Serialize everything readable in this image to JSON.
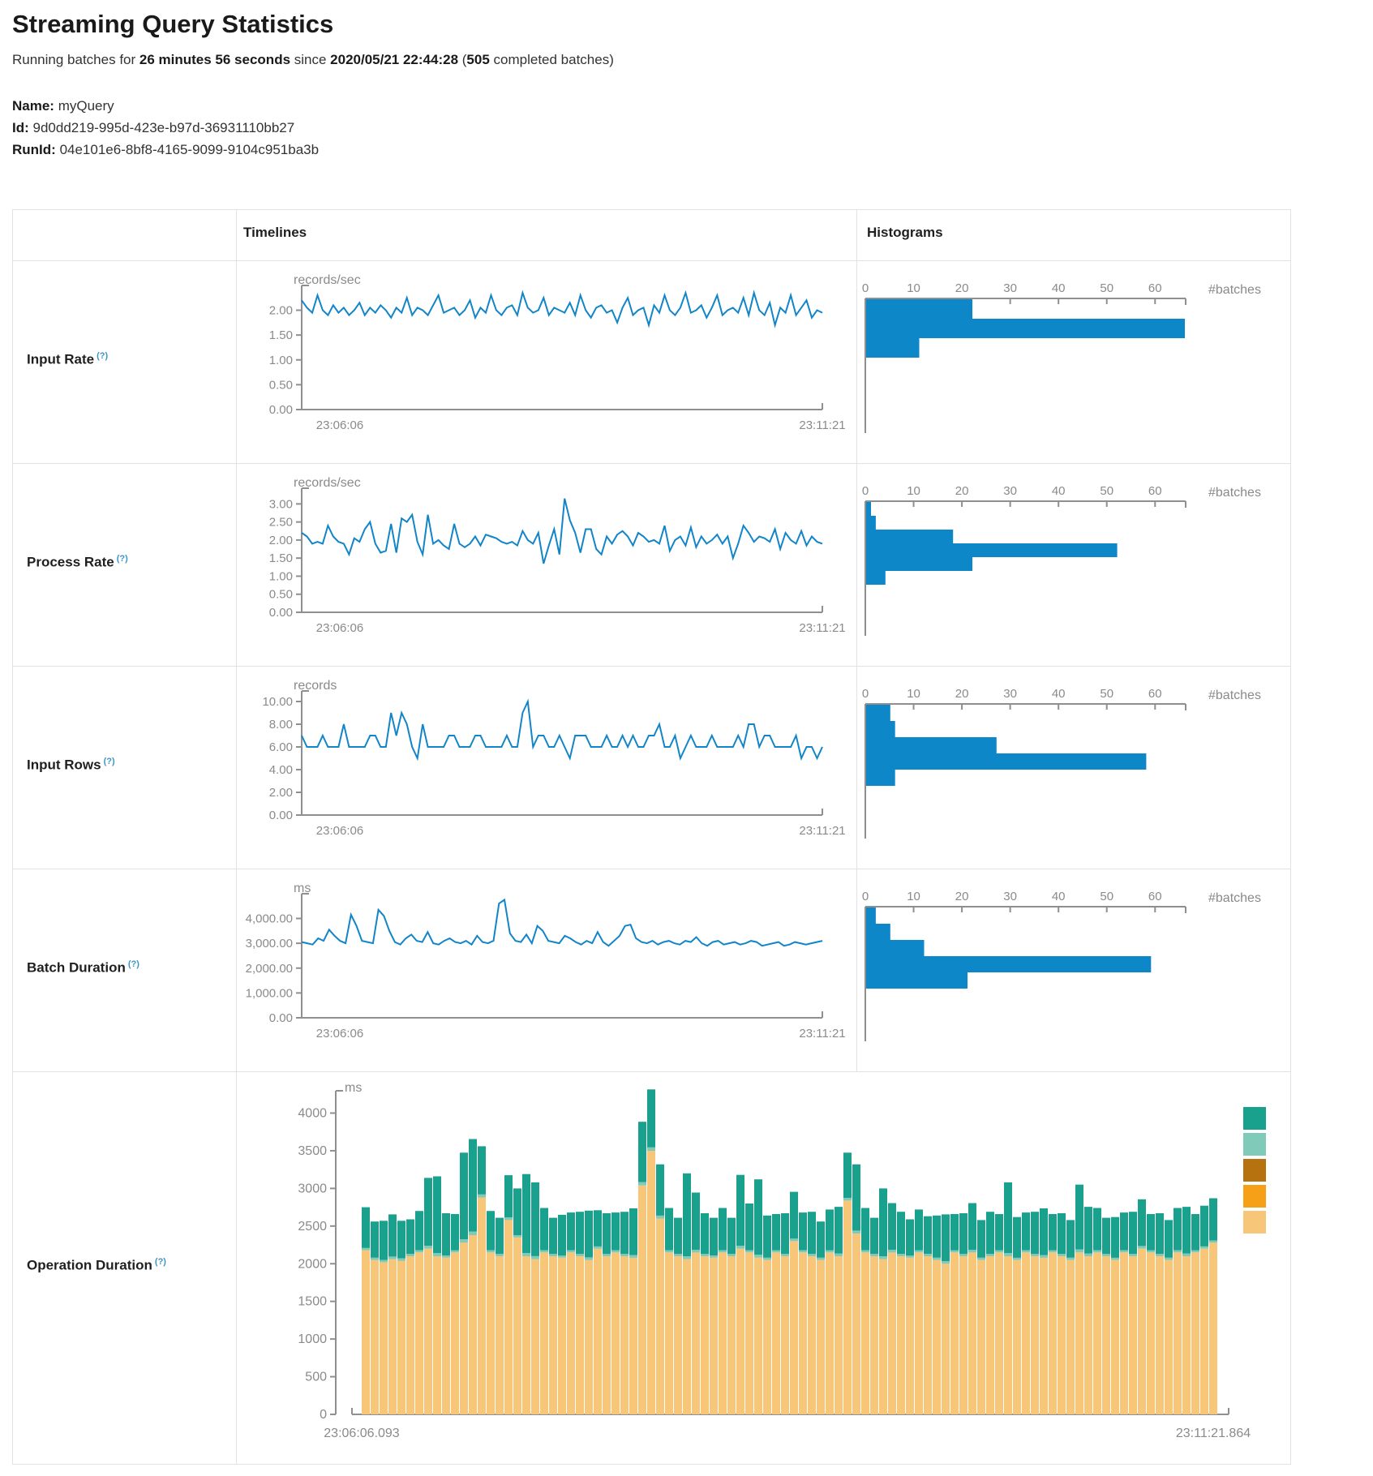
{
  "page": {
    "title": "Streaming Query Statistics",
    "status": {
      "prefix": "Running batches for ",
      "duration": "26 minutes 56 seconds",
      "since": " since ",
      "start_time": "2020/05/21 22:44:28",
      "paren_open": " (",
      "completed_batches": "505",
      "suffix": " completed batches)"
    },
    "name_label": "Name:",
    "name_value": "myQuery",
    "id_label": "Id:",
    "id_value": "9d0dd219-995d-423e-b97d-36931110bb27",
    "runid_label": "RunId:",
    "runid_value": "04e101e6-8bf8-4165-9099-9104c951ba3b"
  },
  "table": {
    "col_timelines": "Timelines",
    "col_histograms": "Histograms",
    "rows": [
      {
        "label": "Input Rate",
        "help": "(?)"
      },
      {
        "label": "Process Rate",
        "help": "(?)"
      },
      {
        "label": "Input Rows",
        "help": "(?)"
      },
      {
        "label": "Batch Duration",
        "help": "(?)"
      },
      {
        "label": "Operation Duration",
        "help": "(?)"
      }
    ]
  },
  "colors": {
    "line_blue": "#1285c8",
    "hist_bar_blue": "#0e87c9",
    "axis_gray": "#8f8f8f",
    "text_gray": "#8a8a8a",
    "help_blue": "#3d95c6"
  },
  "chart_data": {
    "input_rate_timeline": {
      "type": "line",
      "unit": "records/sec",
      "x_start": "23:06:06",
      "x_end": "23:11:21",
      "ylim": [
        0,
        2.4
      ],
      "ytick_values": [
        0,
        0.5,
        1,
        1.5,
        2
      ],
      "ytick_labels": [
        "0.00",
        "0.50",
        "1.00",
        "1.50",
        "2.00"
      ],
      "values": [
        2.2,
        2.05,
        1.95,
        2.3,
        2.0,
        1.9,
        2.1,
        1.95,
        2.05,
        1.9,
        2.0,
        2.15,
        1.9,
        2.05,
        1.95,
        2.1,
        2.0,
        1.85,
        2.05,
        1.95,
        2.25,
        1.9,
        2.05,
        2.0,
        1.9,
        2.1,
        2.3,
        1.95,
        2.0,
        2.05,
        1.9,
        2.0,
        2.2,
        1.85,
        2.05,
        1.95,
        2.3,
        2.0,
        1.9,
        2.05,
        2.1,
        1.9,
        2.35,
        2.05,
        1.95,
        2.0,
        2.25,
        1.9,
        2.05,
        2.0,
        1.95,
        2.15,
        1.9,
        2.3,
        2.0,
        1.85,
        2.05,
        2.1,
        1.95,
        2.0,
        1.75,
        2.05,
        2.25,
        1.9,
        2.0,
        2.05,
        1.7,
        2.1,
        1.95,
        2.3,
        2.0,
        1.9,
        2.05,
        2.35,
        1.95,
        2.0,
        2.1,
        1.85,
        2.05,
        2.3,
        1.9,
        2.0,
        2.05,
        1.95,
        2.25,
        1.9,
        2.35,
        2.0,
        1.9,
        2.15,
        1.7,
        2.05,
        1.95,
        2.3,
        1.9,
        2.05,
        2.2,
        1.85,
        2.0,
        1.95
      ]
    },
    "input_rate_histogram": {
      "type": "bar-h",
      "xlabel": "#batches",
      "xticks": [
        0,
        10,
        20,
        30,
        40,
        50,
        60
      ],
      "xlim": [
        0,
        66
      ],
      "values": [
        22,
        66,
        11
      ]
    },
    "process_rate_timeline": {
      "type": "line",
      "unit": "records/sec",
      "x_start": "23:06:06",
      "x_end": "23:11:21",
      "ylim": [
        0,
        3.3
      ],
      "ytick_values": [
        0,
        0.5,
        1,
        1.5,
        2,
        2.5,
        3
      ],
      "ytick_labels": [
        "0.00",
        "0.50",
        "1.00",
        "1.50",
        "2.00",
        "2.50",
        "3.00"
      ],
      "values": [
        2.2,
        2.1,
        1.9,
        1.95,
        1.9,
        2.4,
        2.1,
        1.95,
        1.9,
        1.6,
        2.05,
        1.95,
        2.3,
        2.5,
        1.9,
        1.65,
        1.7,
        2.45,
        1.65,
        2.6,
        2.5,
        2.7,
        1.95,
        1.6,
        2.7,
        1.9,
        2.0,
        1.85,
        1.75,
        2.45,
        1.9,
        1.8,
        1.9,
        2.1,
        1.85,
        2.15,
        2.1,
        2.05,
        1.95,
        1.9,
        1.95,
        1.85,
        2.25,
        2.0,
        1.9,
        2.2,
        1.35,
        1.85,
        2.3,
        1.6,
        3.15,
        2.55,
        2.2,
        1.65,
        2.3,
        2.3,
        1.75,
        1.6,
        2.1,
        1.9,
        2.15,
        2.25,
        2.1,
        1.85,
        2.2,
        2.1,
        1.95,
        2.0,
        1.9,
        2.4,
        1.7,
        2.0,
        2.1,
        1.85,
        2.35,
        1.8,
        2.1,
        1.9,
        2.0,
        2.15,
        1.9,
        2.1,
        1.5,
        1.9,
        2.4,
        2.2,
        1.95,
        2.1,
        2.05,
        1.95,
        2.3,
        1.75,
        2.2,
        2.0,
        1.9,
        2.25,
        1.85,
        2.1,
        1.95,
        1.9
      ]
    },
    "process_rate_histogram": {
      "type": "bar-h",
      "xlabel": "#batches",
      "xticks": [
        0,
        10,
        20,
        30,
        40,
        50,
        60
      ],
      "xlim": [
        0,
        66
      ],
      "values": [
        1,
        2,
        18,
        52,
        22,
        4
      ]
    },
    "input_rows_timeline": {
      "type": "line",
      "unit": "records",
      "x_start": "23:06:06",
      "x_end": "23:11:21",
      "ylim": [
        0,
        10.5
      ],
      "ytick_values": [
        0,
        2,
        4,
        6,
        8,
        10
      ],
      "ytick_labels": [
        "0.00",
        "2.00",
        "4.00",
        "6.00",
        "8.00",
        "10.00"
      ],
      "values": [
        7,
        6,
        6,
        6,
        7,
        6,
        6,
        6,
        8,
        6,
        6,
        6,
        6,
        7,
        7,
        6,
        6,
        9,
        7,
        9,
        8,
        6,
        5,
        8,
        6,
        6,
        6,
        6,
        7,
        7,
        6,
        6,
        6,
        7,
        7,
        6,
        6,
        6,
        6,
        7,
        6,
        6,
        9,
        10,
        6,
        7,
        7,
        6,
        6,
        7,
        6,
        5,
        7,
        7,
        7,
        6,
        6,
        6,
        7,
        6,
        6,
        7,
        6,
        7,
        6,
        6,
        7,
        7,
        8,
        6,
        6,
        7,
        5,
        6,
        7,
        6,
        6,
        6,
        7,
        6,
        6,
        6,
        6,
        7,
        6,
        8,
        8,
        6,
        7,
        7,
        6,
        6,
        6,
        6,
        7,
        5,
        6,
        6,
        5,
        6
      ]
    },
    "input_rows_histogram": {
      "type": "bar-h",
      "xlabel": "#batches",
      "xticks": [
        0,
        10,
        20,
        30,
        40,
        50,
        60
      ],
      "xlim": [
        0,
        66
      ],
      "values": [
        5,
        6,
        27,
        58,
        6
      ]
    },
    "batch_duration_timeline": {
      "type": "line",
      "unit": "ms",
      "x_start": "23:06:06",
      "x_end": "23:11:21",
      "ylim": [
        0,
        4800
      ],
      "ytick_values": [
        0,
        1000,
        2000,
        3000,
        4000
      ],
      "ytick_labels": [
        "0.00",
        "1,000.00",
        "2,000.00",
        "3,000.00",
        "4,000.00"
      ],
      "values": [
        3050,
        3000,
        2950,
        3200,
        3100,
        3550,
        3300,
        3100,
        3000,
        4150,
        3700,
        3100,
        3050,
        3000,
        4350,
        4100,
        3500,
        3050,
        2950,
        3200,
        3350,
        3100,
        3050,
        3450,
        3000,
        2950,
        3100,
        3200,
        3050,
        3000,
        3100,
        2950,
        3300,
        3050,
        3000,
        3100,
        4600,
        4750,
        3400,
        3100,
        3050,
        3350,
        3000,
        3700,
        3500,
        3100,
        3050,
        3000,
        3300,
        3200,
        3050,
        2950,
        3100,
        3000,
        3450,
        3050,
        2900,
        3100,
        3300,
        3700,
        3750,
        3200,
        3050,
        3000,
        3100,
        2950,
        3050,
        3100,
        3000,
        2950,
        3100,
        3050,
        3250,
        3000,
        2900,
        3050,
        3100,
        2950,
        3000,
        3050,
        2950,
        3000,
        3100,
        3050,
        2900,
        2950,
        3000,
        3050,
        2900,
        2950,
        3050,
        3000,
        2950,
        3000,
        3050,
        3100
      ]
    },
    "batch_duration_histogram": {
      "type": "bar-h",
      "xlabel": "#batches",
      "xticks": [
        0,
        10,
        20,
        30,
        40,
        50,
        60
      ],
      "xlim": [
        0,
        66
      ],
      "values": [
        2,
        5,
        12,
        59,
        21
      ]
    },
    "operation_duration_stack": {
      "type": "stacked-bar",
      "unit": "ms",
      "x_start": "23:06:06.093",
      "x_end": "23:11:21.864",
      "ylim": [
        0,
        4350
      ],
      "ytick_values": [
        0,
        500,
        1000,
        1500,
        2000,
        2500,
        3000,
        3500,
        4000
      ],
      "ytick_labels": [
        "0",
        "500",
        "1000",
        "1500",
        "2000",
        "2500",
        "3000",
        "3500",
        "4000"
      ],
      "legend_swatch_colors": [
        "#1aa18e",
        "#7fcab8",
        "#b5720e",
        "#f5a017",
        "#f7c678"
      ],
      "series": [
        {
          "color": "#f7c678",
          "values": [
            2180,
            2050,
            2020,
            2060,
            2040,
            2100,
            2150,
            2200,
            2100,
            2080,
            2150,
            2280,
            2380,
            2880,
            2150,
            2100,
            2580,
            2350,
            2100,
            2060,
            2150,
            2100,
            2080,
            2150,
            2100,
            2050,
            2200,
            2100,
            2150,
            2100,
            2080,
            3040,
            3500,
            2600,
            2150,
            2100,
            2060,
            2150,
            2100,
            2080,
            2150,
            2100,
            2200,
            2150,
            2080,
            2050,
            2150,
            2100,
            2300,
            2150,
            2100,
            2050,
            2150,
            2100,
            2840,
            2400,
            2150,
            2100,
            2060,
            2150,
            2100,
            2080,
            2150,
            2100,
            2050,
            2000,
            2150,
            2100,
            2150,
            2050,
            2100,
            2150,
            2100,
            2050,
            2150,
            2100,
            2080,
            2150,
            2100,
            2050,
            2150,
            2100,
            2150,
            2100,
            2050,
            2150,
            2100,
            2200,
            2150,
            2100,
            2050,
            2150,
            2100,
            2150,
            2200,
            2280
          ]
        },
        {
          "color": "#7fcab8",
          "values": [
            30,
            30,
            30,
            35,
            30,
            30,
            30,
            40,
            40,
            30,
            30,
            45,
            45,
            40,
            30,
            30,
            35,
            30,
            40,
            40,
            30,
            30,
            30,
            30,
            30,
            35,
            30,
            30,
            30,
            30,
            35,
            45,
            45,
            40,
            30,
            30,
            40,
            35,
            30,
            30,
            30,
            30,
            40,
            30,
            40,
            30,
            30,
            30,
            35,
            30,
            30,
            30,
            30,
            35,
            35,
            40,
            30,
            30,
            40,
            35,
            30,
            30,
            30,
            30,
            30,
            35,
            30,
            30,
            35,
            30,
            30,
            30,
            40,
            30,
            30,
            30,
            35,
            30,
            30,
            30,
            40,
            35,
            30,
            30,
            30,
            30,
            30,
            35,
            30,
            30,
            30,
            30,
            35,
            30,
            30,
            30
          ]
        },
        {
          "color": "#1aa18e",
          "values": [
            540,
            480,
            520,
            560,
            500,
            460,
            520,
            900,
            1020,
            560,
            480,
            1150,
            1230,
            640,
            520,
            480,
            560,
            620,
            1050,
            980,
            560,
            480,
            540,
            500,
            560,
            620,
            480,
            540,
            500,
            560,
            620,
            800,
            770,
            680,
            560,
            480,
            1100,
            760,
            540,
            500,
            560,
            480,
            940,
            620,
            1000,
            560,
            480,
            540,
            620,
            500,
            560,
            480,
            540,
            620,
            600,
            880,
            560,
            480,
            900,
            620,
            560,
            480,
            540,
            500,
            560,
            620,
            480,
            540,
            620,
            500,
            560,
            480,
            940,
            540,
            500,
            560,
            620,
            480,
            540,
            500,
            860,
            620,
            560,
            480,
            540,
            500,
            560,
            620,
            480,
            540,
            500,
            560,
            620,
            480,
            540,
            560
          ]
        }
      ]
    }
  }
}
